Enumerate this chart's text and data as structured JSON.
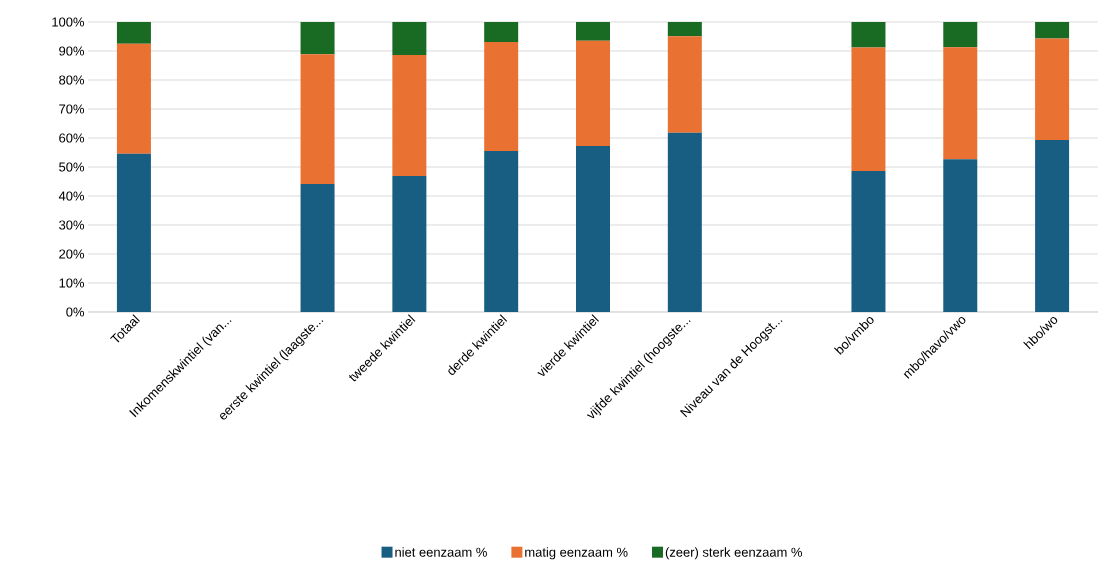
{
  "chart_data": {
    "type": "bar",
    "stacked": true,
    "categories": [
      "Totaal",
      "Inkomenskwintiel (van...",
      "eerste kwintiel (laagste...",
      "tweede kwintiel",
      "derde kwintiel",
      "vierde kwintiel",
      "vijfde kwintiel (hoogste...",
      "Niveau van de Hoogst...",
      "bo/vmbo",
      "mbo/havo/vwo",
      "hbo/wo"
    ],
    "series": [
      {
        "name": "niet eenzaam %",
        "color": "#175e82",
        "values": [
          54.6,
          null,
          44.1,
          46.9,
          55.5,
          57.2,
          61.8,
          null,
          48.6,
          52.7,
          59.3
        ]
      },
      {
        "name": "matig eenzaam %",
        "color": "#e97132",
        "values": [
          37.9,
          null,
          44.8,
          41.7,
          37.6,
          36.3,
          33.3,
          null,
          42.6,
          38.6,
          35.0
        ]
      },
      {
        "name": "(zeer) sterk eenzaam %",
        "color": "#196b24",
        "values": [
          7.5,
          null,
          11.1,
          11.4,
          6.9,
          6.5,
          4.9,
          null,
          8.8,
          8.7,
          5.7
        ]
      }
    ],
    "ylim": [
      0,
      100
    ],
    "yticks": [
      {
        "value": 0,
        "label": "0%"
      },
      {
        "value": 10,
        "label": "10%"
      },
      {
        "value": 20,
        "label": "20%"
      },
      {
        "value": 30,
        "label": "30%"
      },
      {
        "value": 40,
        "label": "40%"
      },
      {
        "value": 50,
        "label": "50%"
      },
      {
        "value": 60,
        "label": "60%"
      },
      {
        "value": 70,
        "label": "70%"
      },
      {
        "value": 80,
        "label": "80%"
      },
      {
        "value": 90,
        "label": "90%"
      },
      {
        "value": 100,
        "label": "100%"
      }
    ],
    "grid": "y",
    "legend": "bottom"
  }
}
